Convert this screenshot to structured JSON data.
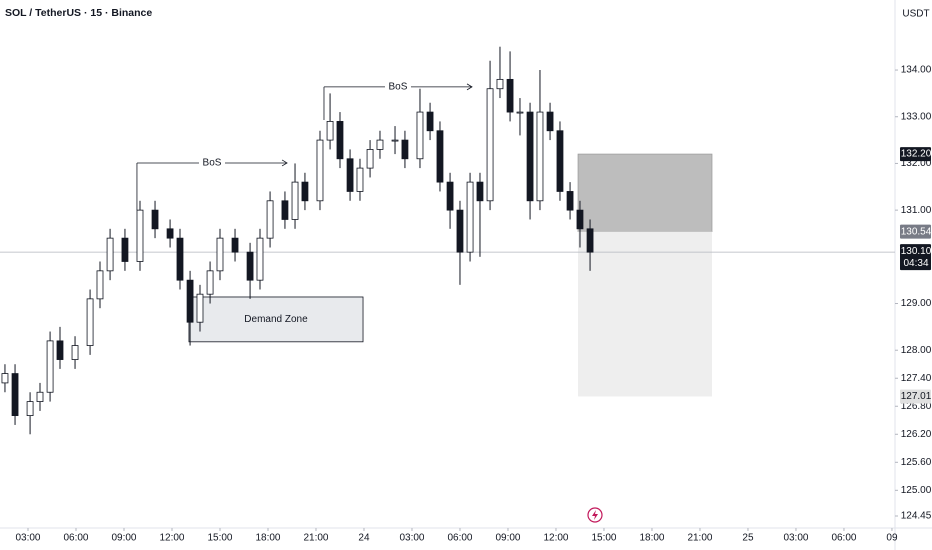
{
  "chart_data": {
    "type": "candlestick",
    "title": "SOL / TetherUS · 15 · Binance",
    "currency": "USDT",
    "x": [
      1.56,
      2.19,
      3.13,
      3.75,
      4.38,
      5.0,
      5.94,
      6.88,
      7.5,
      8.13,
      9.06,
      10.0,
      10.94,
      11.88,
      12.5,
      13.13,
      13.75,
      14.38,
      15.0,
      15.94,
      16.88,
      17.5,
      18.13,
      19.06,
      19.69,
      20.31,
      21.25,
      21.88,
      22.5,
      23.13,
      23.75,
      24.38,
      25.0,
      25.94,
      26.56,
      27.5,
      28.13,
      28.75,
      29.38,
      30.0,
      30.63,
      31.25,
      31.88,
      32.5,
      33.13,
      33.75,
      34.38,
      35.0,
      35.63,
      36.25,
      36.88,
      37.5,
      38.13
    ],
    "open": [
      127.3,
      127.5,
      126.6,
      126.9,
      127.1,
      128.2,
      127.8,
      128.1,
      129.1,
      129.7,
      130.4,
      129.9,
      131.0,
      130.6,
      130.4,
      129.5,
      128.6,
      129.2,
      129.7,
      130.4,
      130.1,
      129.5,
      130.4,
      131.2,
      130.8,
      131.6,
      131.2,
      132.5,
      132.9,
      132.1,
      131.4,
      131.9,
      132.3,
      132.5,
      132.5,
      132.1,
      133.1,
      132.7,
      131.6,
      131.0,
      130.1,
      131.6,
      131.2,
      133.6,
      133.8,
      133.1,
      133.1,
      131.2,
      133.1,
      132.7,
      131.4,
      131.0,
      130.6
    ],
    "high": [
      127.7,
      127.7,
      127.1,
      127.3,
      128.4,
      128.5,
      128.3,
      129.3,
      129.9,
      130.6,
      130.6,
      131.2,
      131.2,
      130.8,
      130.6,
      129.7,
      129.4,
      129.9,
      130.6,
      130.6,
      130.3,
      130.6,
      131.4,
      131.4,
      132.0,
      131.8,
      132.7,
      133.5,
      133.1,
      132.3,
      132.1,
      132.5,
      132.7,
      132.8,
      132.7,
      133.6,
      133.3,
      132.9,
      131.8,
      131.2,
      131.8,
      131.8,
      134.2,
      134.5,
      134.4,
      133.4,
      133.3,
      134.0,
      133.3,
      132.9,
      131.6,
      131.2,
      130.8
    ],
    "low": [
      127.1,
      126.4,
      126.2,
      126.7,
      126.9,
      127.6,
      127.6,
      127.9,
      128.9,
      129.5,
      129.7,
      129.7,
      130.4,
      130.2,
      129.3,
      128.1,
      128.4,
      129.0,
      129.5,
      129.9,
      129.1,
      129.3,
      130.2,
      130.6,
      130.6,
      131.0,
      131.0,
      132.3,
      131.9,
      131.2,
      131.2,
      131.7,
      132.1,
      132.2,
      131.9,
      131.9,
      132.5,
      131.4,
      130.6,
      129.4,
      129.9,
      130.0,
      131.0,
      133.4,
      132.9,
      132.6,
      130.8,
      131.0,
      132.5,
      131.2,
      130.8,
      130.2,
      129.7
    ],
    "close": [
      127.5,
      126.6,
      126.9,
      127.1,
      128.2,
      127.8,
      128.1,
      129.1,
      129.7,
      130.4,
      129.9,
      131.0,
      130.6,
      130.4,
      129.5,
      128.6,
      129.2,
      129.7,
      130.4,
      130.1,
      129.5,
      130.4,
      131.2,
      130.8,
      131.6,
      131.2,
      132.5,
      132.9,
      132.1,
      131.4,
      131.9,
      132.3,
      132.5,
      132.5,
      132.1,
      133.1,
      132.7,
      131.6,
      131.0,
      130.1,
      131.6,
      131.2,
      133.6,
      133.8,
      133.1,
      133.1,
      131.2,
      133.1,
      132.7,
      131.4,
      131.0,
      130.6,
      130.1
    ],
    "up_color": "#ffffff",
    "down_color": "#131722",
    "xlim": [
      1.25,
      57.19
    ],
    "xticks": [
      {
        "value": 3,
        "label": "03:00"
      },
      {
        "value": 6,
        "label": "06:00"
      },
      {
        "value": 9,
        "label": "09:00"
      },
      {
        "value": 12,
        "label": "12:00"
      },
      {
        "value": 15,
        "label": "15:00"
      },
      {
        "value": 18,
        "label": "18:00"
      },
      {
        "value": 21,
        "label": "21:00"
      },
      24,
      {
        "value": 27,
        "label": "03:00"
      },
      {
        "value": 30,
        "label": "06:00"
      },
      {
        "value": 33,
        "label": "09:00"
      },
      {
        "value": 36,
        "label": "12:00"
      },
      {
        "value": 39,
        "label": "15:00"
      },
      {
        "value": 42,
        "label": "18:00"
      },
      {
        "value": 45,
        "label": "21:00"
      },
      {
        "value": 48,
        "label": "25"
      },
      {
        "value": 51,
        "label": "03:00"
      },
      {
        "value": 54,
        "label": "06:00"
      },
      {
        "value": 57,
        "label": "09"
      }
    ],
    "ylim": [
      124.15,
      135.5
    ],
    "yticks": [
      {
        "value": 134,
        "label": "134.00"
      },
      {
        "value": 133,
        "label": "133.00"
      },
      {
        "value": 132,
        "label": "132.00"
      },
      {
        "value": 131,
        "label": "131.00"
      },
      {
        "value": 129,
        "label": "129.00"
      },
      {
        "value": 128,
        "label": "128.00"
      },
      {
        "value": 127.4,
        "label": "127.40"
      },
      {
        "value": 126.8,
        "label": "126.80"
      },
      {
        "value": 126.2,
        "label": "126.20"
      },
      {
        "value": 125.6,
        "label": "125.60"
      },
      {
        "value": 125,
        "label": "125.00"
      },
      124.45
    ],
    "last_price": {
      "value": 130.1,
      "label": "130.10"
    },
    "countdown": "04:34",
    "bos": [
      {
        "text": "BoS",
        "x": [
          9.81,
          19.19
        ],
        "y": 132.01,
        "y_start": 131.0
      },
      {
        "text": "BoS",
        "x": [
          21.5,
          30.75
        ],
        "y": 133.64,
        "y_start": 132.93
      }
    ],
    "demand_zone": {
      "text": "Demand Zone",
      "x": [
        13.06,
        23.94
      ],
      "y": [
        128.18,
        129.14
      ]
    },
    "position": {
      "x": [
        37.38,
        45.75
      ],
      "stop": {
        "value": 132.2,
        "label": "132.20"
      },
      "entry": {
        "value": 130.54,
        "label": "130.54"
      },
      "target": {
        "value": 127.01,
        "label": "127.01"
      }
    }
  }
}
